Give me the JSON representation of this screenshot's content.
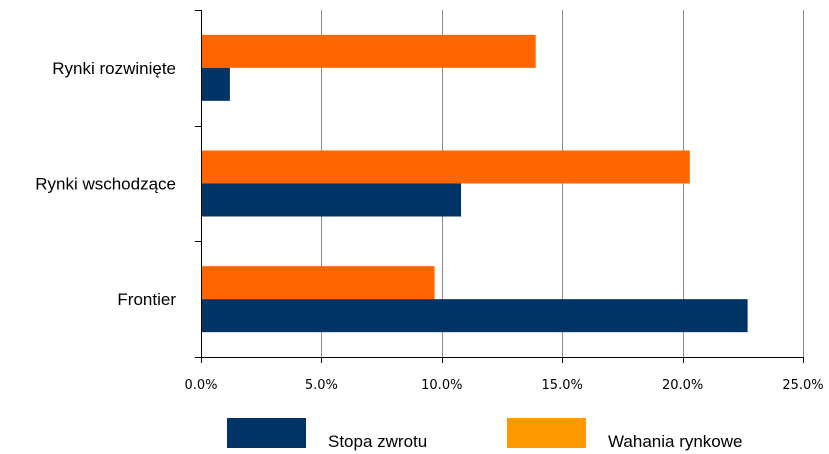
{
  "chart_data": {
    "type": "bar",
    "orientation": "horizontal",
    "categories": [
      "Rynki rozwinięte",
      "Rynki wschodzące",
      "Frontier"
    ],
    "series": [
      {
        "name": "Wahania rynkowe",
        "color": "#ff6600",
        "values": [
          13.9,
          20.3,
          9.7
        ]
      },
      {
        "name": "Stopa zwrotu",
        "color": "#003366",
        "values": [
          1.2,
          10.8,
          22.7
        ]
      }
    ],
    "xlim": [
      0,
      25
    ],
    "x_ticks": [
      0,
      5,
      10,
      15,
      20,
      25
    ],
    "x_tick_labels": [
      "0.0%",
      "5.0%",
      "10.0%",
      "15.0%",
      "20.0%",
      "25.0%"
    ],
    "grid": "vertical",
    "legend_position": "bottom",
    "title": "",
    "xlabel": "",
    "ylabel": ""
  },
  "legend": [
    {
      "label": "Stopa zwrotu",
      "color": "#003366"
    },
    {
      "label": "Wahania rynkowe",
      "color": "#ff9900"
    }
  ]
}
